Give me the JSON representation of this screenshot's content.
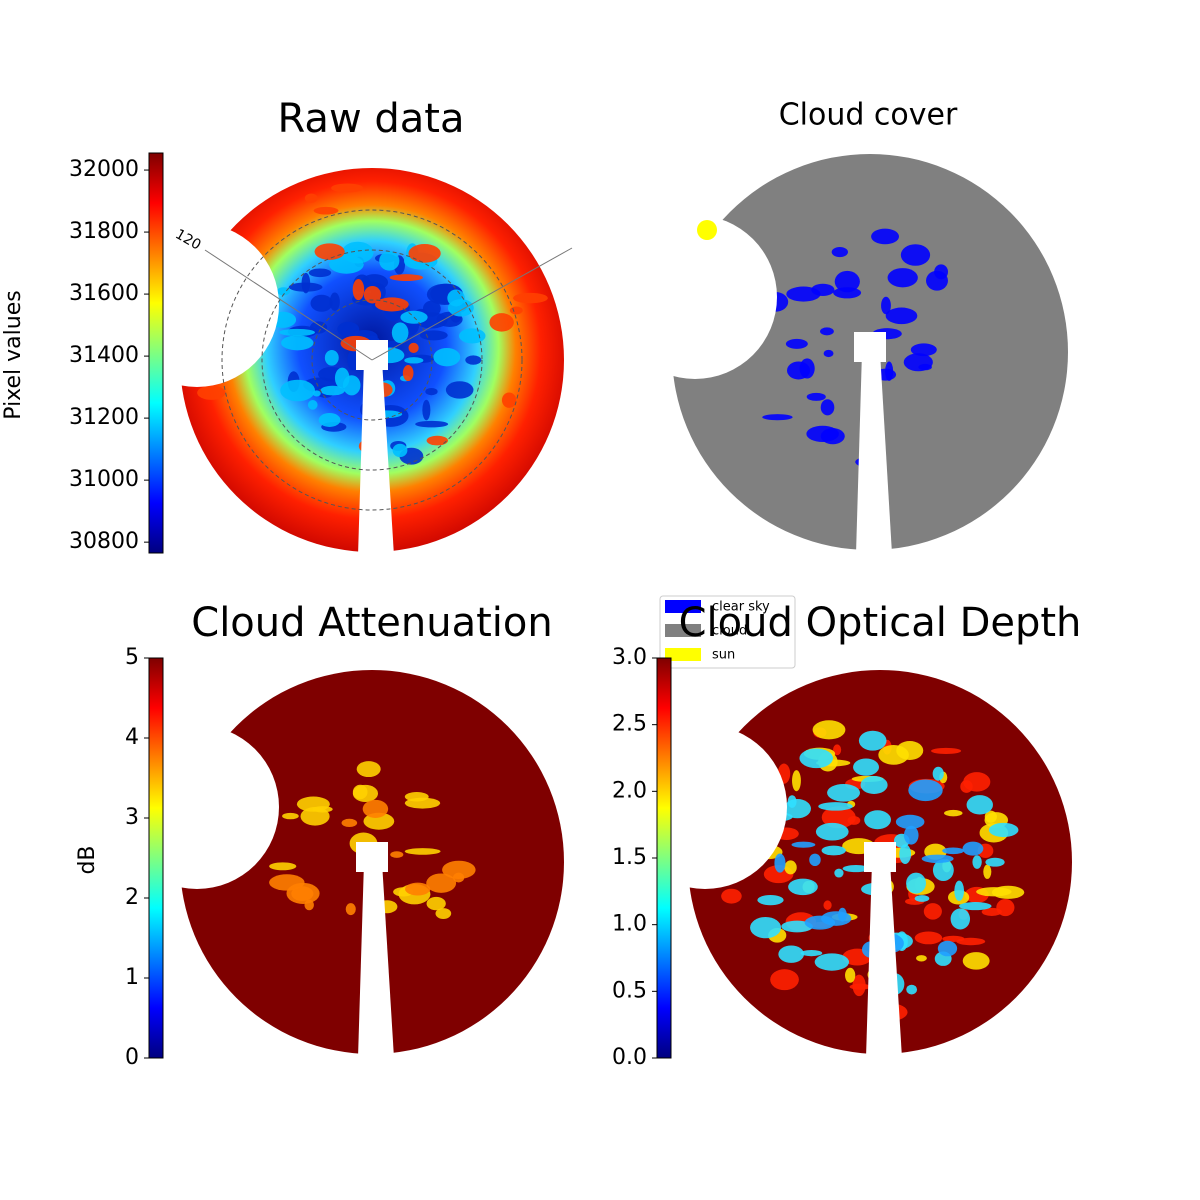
{
  "chart_data": [
    {
      "type": "image",
      "title": "Raw data",
      "colorbar_label": "Pixel values",
      "colormap": "jet",
      "clim": [
        30765,
        32055
      ],
      "cticks": [
        30800,
        31000,
        31200,
        31400,
        31600,
        31800,
        32000
      ],
      "annotations": [
        "120"
      ]
    },
    {
      "type": "image",
      "title": "Cloud cover",
      "series": [
        {
          "name": "clear sky",
          "color": "#0000ff"
        },
        {
          "name": "cloud",
          "color": "#808080"
        },
        {
          "name": "sun",
          "color": "#ffff00"
        }
      ]
    },
    {
      "type": "image",
      "title": "Cloud Attenuation",
      "colorbar_label": "dB",
      "colormap": "jet",
      "clim": [
        0,
        5
      ],
      "cticks": [
        0,
        1,
        2,
        3,
        4,
        5
      ]
    },
    {
      "type": "image",
      "title": "Cloud Optical Depth",
      "colormap": "jet",
      "clim": [
        0,
        3
      ],
      "cticks": [
        {
          "value": 0,
          "label": "0.0"
        },
        {
          "value": 0.5,
          "label": "0.5"
        },
        {
          "value": 1,
          "label": "1.0"
        },
        {
          "value": 1.5,
          "label": "1.5"
        },
        {
          "value": 2,
          "label": "2.0"
        },
        {
          "value": 2.5,
          "label": "2.5"
        },
        {
          "value": 3,
          "label": "3.0"
        }
      ]
    }
  ]
}
